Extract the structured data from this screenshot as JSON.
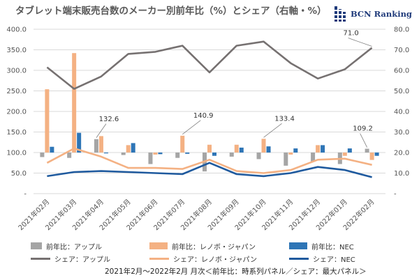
{
  "header": {
    "title": "タブレット端末販売台数のメーカー別前年比（%）とシェア（右軸・%）",
    "brand": "BCN Ranking"
  },
  "footer": {
    "note": "2021年2月～2022年2月 月次＜前年比：時系列パネル／シェア：最大パネル＞"
  },
  "colors": {
    "apple_bar": "#a5a5a5",
    "lenovo_bar": "#f4b183",
    "nec_bar": "#2e75b6",
    "apple_line": "#767171",
    "lenovo_line": "#f4b183",
    "nec_line": "#1f5a9e",
    "grid": "#d9d9d9"
  },
  "chart_data": {
    "type": "bar+line",
    "title": "タブレット端末販売台数のメーカー別前年比（%）とシェア（右軸・%）",
    "categories": [
      "2021年02月",
      "2021年03月",
      "2021年04月",
      "2021年05月",
      "2021年06月",
      "2021年07月",
      "2021年08月",
      "2021年09月",
      "2021年10月",
      "2021年11月",
      "2021年12月",
      "2022年01月",
      "2022年02月"
    ],
    "y_left": {
      "ticks": [
        "-",
        "50.0",
        "100.0",
        "150.0",
        "200.0",
        "250.0",
        "300.0",
        "350.0",
        "400.0"
      ],
      "ylim": [
        0,
        400
      ],
      "baseline": 100
    },
    "y_right": {
      "ticks": [
        "-",
        "10.0",
        "20.0",
        "30.0",
        "40.0",
        "50.0",
        "60.0",
        "70.0",
        "80.0"
      ],
      "ylim": [
        0,
        80
      ]
    },
    "bar_series": [
      {
        "name": "前年比：アップル",
        "values": [
          89,
          87,
          132.6,
          94,
          72,
          87,
          54,
          90,
          84,
          68,
          78,
          72,
          109.2
        ]
      },
      {
        "name": "前年比：レノボ・ジャパン",
        "values": [
          254,
          342,
          140,
          118,
          95,
          140.9,
          119,
          119,
          133.4,
          95,
          118,
          92,
          82
        ]
      },
      {
        "name": "前年比：NEC",
        "values": [
          114,
          148,
          98,
          123,
          96,
          97,
          92,
          112,
          115,
          110,
          118,
          110,
          92
        ]
      }
    ],
    "line_series": [
      {
        "name": "シェア：アップル",
        "values": [
          61.5,
          51,
          57,
          68,
          69,
          72,
          59,
          72,
          74,
          63.5,
          56,
          60.5,
          71.0
        ]
      },
      {
        "name": "シェア：レノボ・ジャパン",
        "values": [
          15,
          22,
          18,
          12.5,
          12.5,
          12,
          16.5,
          11,
          10,
          11.5,
          16.5,
          17,
          14
        ]
      },
      {
        "name": "シェア：NEC",
        "values": [
          8.5,
          10.5,
          11,
          10.5,
          10,
          9.5,
          15,
          9.5,
          8.5,
          10,
          13,
          11.5,
          8
        ]
      }
    ],
    "annotations": [
      {
        "text": "132.6",
        "series": "前年比：アップル",
        "category": "2021年04月"
      },
      {
        "text": "140.9",
        "series": "前年比：レノボ・ジャパン",
        "category": "2021年07月"
      },
      {
        "text": "133.4",
        "series": "前年比：レノボ・ジャパン",
        "category": "2021年10月"
      },
      {
        "text": "109.2",
        "series": "前年比：アップル",
        "category": "2022年02月"
      },
      {
        "text": "71.0",
        "series": "シェア：アップル",
        "category": "2022年02月"
      }
    ]
  }
}
